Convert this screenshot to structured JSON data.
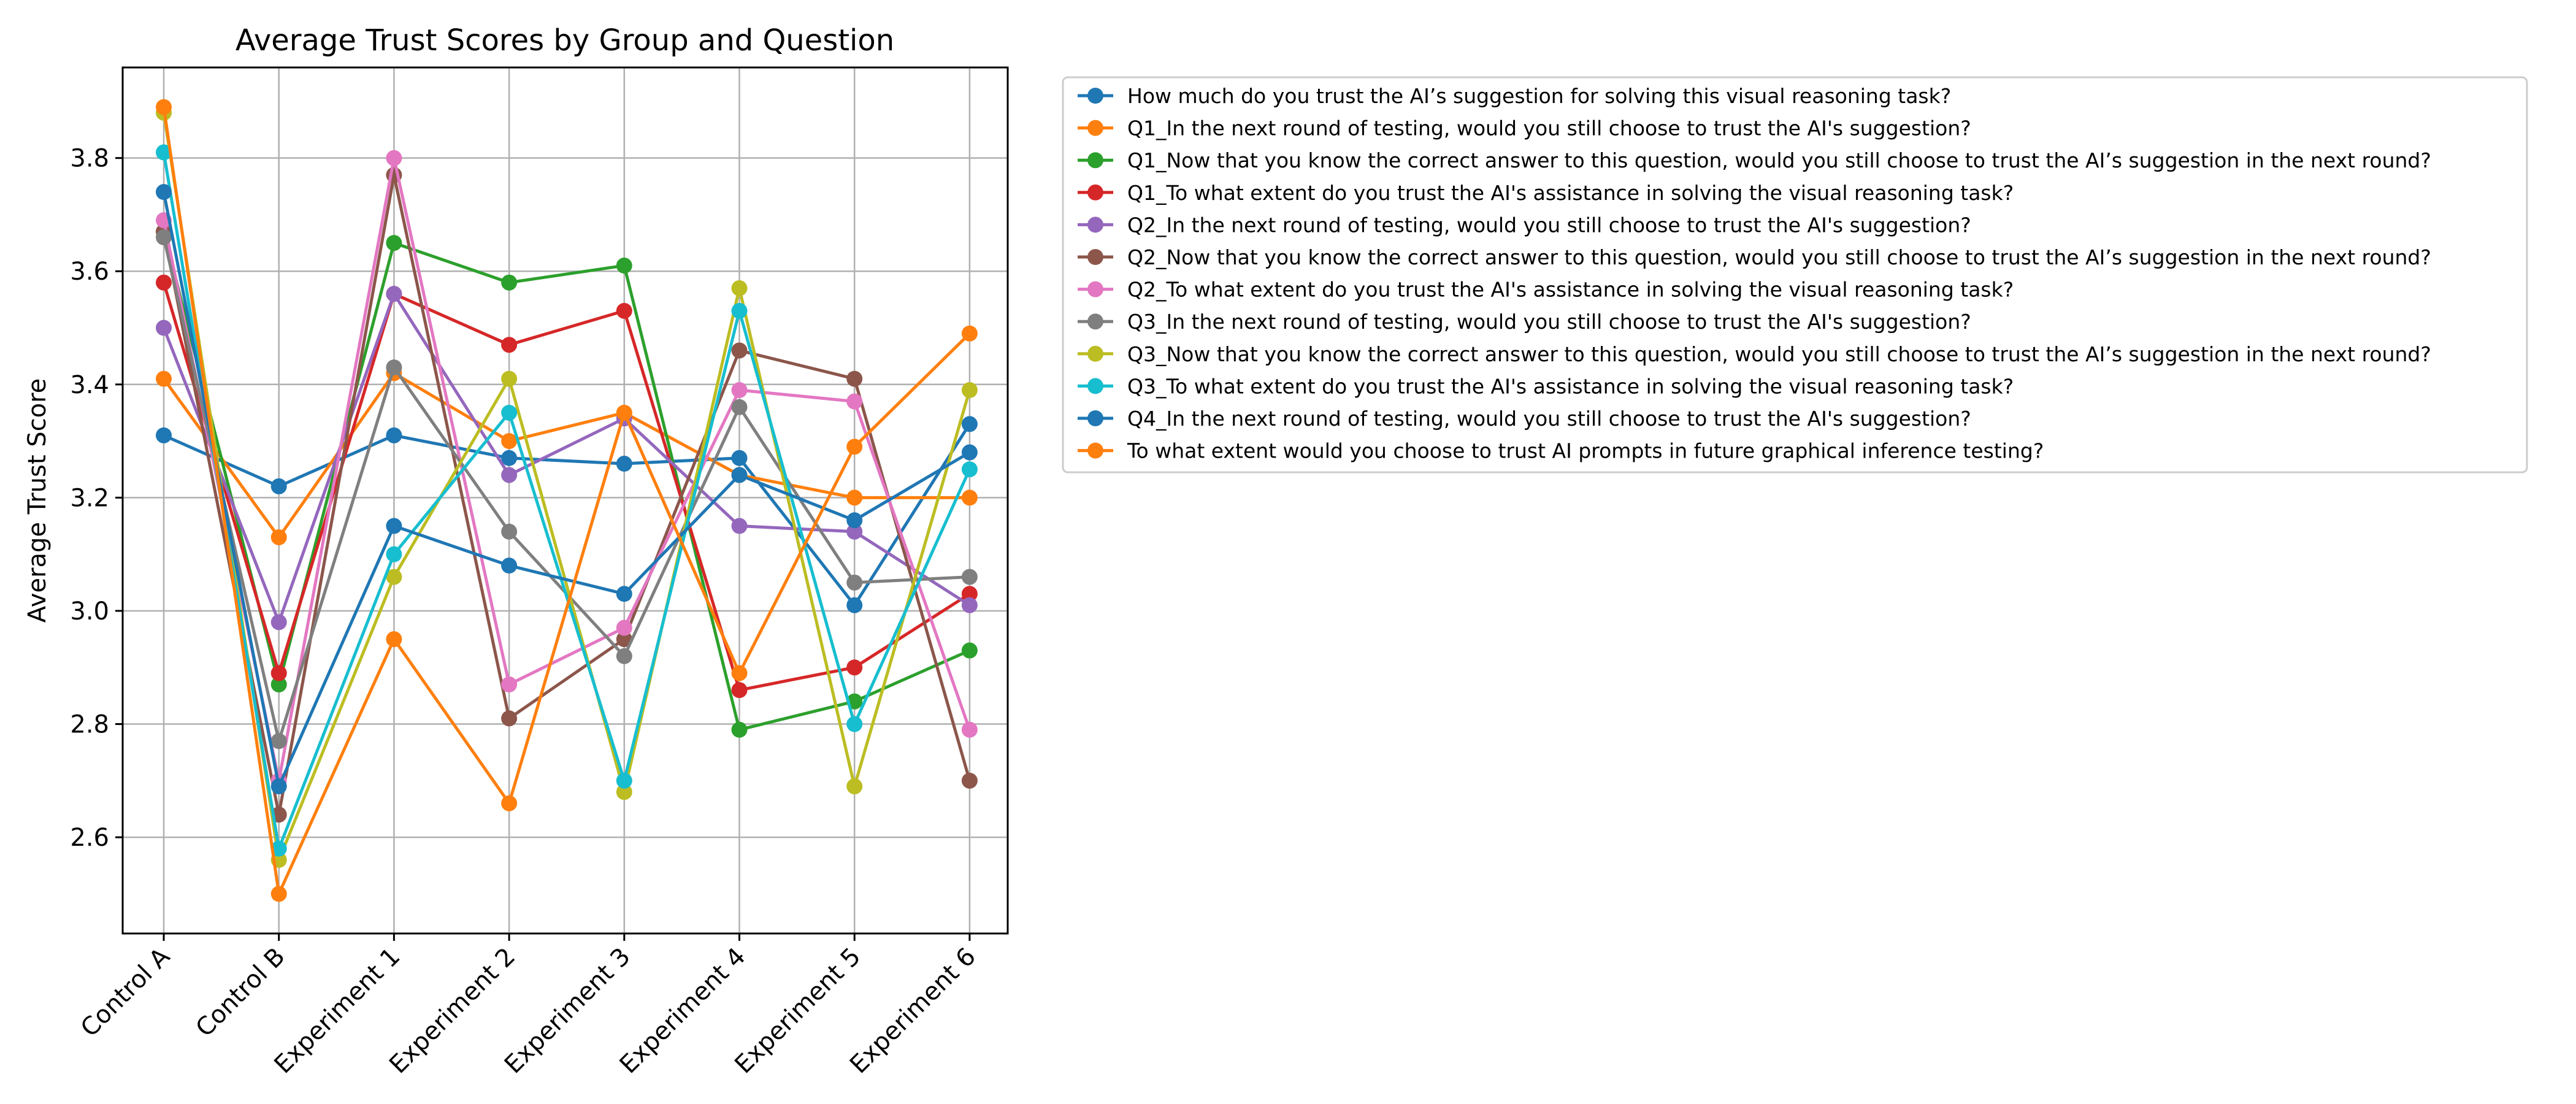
{
  "chart_data": {
    "type": "line",
    "title": "Average Trust Scores by Group and Question",
    "xlabel": "",
    "ylabel": "Average Trust Score",
    "categories": [
      "Control A",
      "Control B",
      "Experiment 1",
      "Experiment 2",
      "Experiment 3",
      "Experiment 4",
      "Experiment 5",
      "Experiment 6"
    ],
    "yticks": [
      "2.6",
      "2.8",
      "3.0",
      "3.2",
      "3.4",
      "3.6",
      "3.8"
    ],
    "ylim": [
      2.43,
      3.96
    ],
    "grid": true,
    "legend_position": "outside-right-top",
    "series": [
      {
        "name": "How much do you trust the AI’s suggestion for solving this visual reasoning task?",
        "color": "#1f77b4",
        "values": [
          3.31,
          3.22,
          3.31,
          3.27,
          3.26,
          3.27,
          3.01,
          3.33
        ]
      },
      {
        "name": "Q1_In the next round of testing, would you still choose to trust the AI's suggestion?",
        "color": "#ff7f0e",
        "values": [
          3.41,
          3.13,
          3.42,
          3.3,
          3.35,
          3.24,
          3.2,
          3.2
        ]
      },
      {
        "name": "Q1_Now that you know the correct answer to this question, would you still choose to trust the AI’s suggestion in the next round?",
        "color": "#2ca02c",
        "values": [
          3.67,
          2.87,
          3.65,
          3.58,
          3.61,
          2.79,
          2.84,
          2.93
        ]
      },
      {
        "name": "Q1_To what extent do you trust the AI's assistance in solving the visual reasoning task?",
        "color": "#d62728",
        "values": [
          3.58,
          2.89,
          3.56,
          3.47,
          3.53,
          2.86,
          2.9,
          3.03
        ]
      },
      {
        "name": "Q2_In the next round of testing, would you still choose to trust the AI's suggestion?",
        "color": "#9467bd",
        "values": [
          3.5,
          2.98,
          3.56,
          3.24,
          3.34,
          3.15,
          3.14,
          3.01
        ]
      },
      {
        "name": "Q2_Now that you know the correct answer to this question, would you still choose to trust the AI’s suggestion in the next round?",
        "color": "#8c564b",
        "values": [
          3.67,
          2.64,
          3.77,
          2.81,
          2.95,
          3.46,
          3.41,
          2.7
        ]
      },
      {
        "name": "Q2_To what extent do you trust the AI's assistance in solving the visual reasoning task?",
        "color": "#e377c2",
        "values": [
          3.69,
          2.7,
          3.8,
          2.87,
          2.97,
          3.39,
          3.37,
          2.79
        ]
      },
      {
        "name": "Q3_In the next round of testing, would you still choose to trust the AI's suggestion?",
        "color": "#7f7f7f",
        "values": [
          3.66,
          2.77,
          3.43,
          3.14,
          2.92,
          3.36,
          3.05,
          3.06
        ]
      },
      {
        "name": "Q3_Now that you know the correct answer to this question, would you still choose to trust the AI’s suggestion in the next round?",
        "color": "#bcbd22",
        "values": [
          3.88,
          2.56,
          3.06,
          3.41,
          2.68,
          3.57,
          2.69,
          3.39
        ]
      },
      {
        "name": "Q3_To what extent do you trust the AI's assistance in solving the visual reasoning task?",
        "color": "#17becf",
        "values": [
          3.81,
          2.58,
          3.1,
          3.35,
          2.7,
          3.53,
          2.8,
          3.25
        ]
      },
      {
        "name": "Q4_In the next round of testing, would you still choose to trust the AI's suggestion?",
        "color": "#1f77b4",
        "values": [
          3.74,
          2.69,
          3.15,
          3.08,
          3.03,
          3.24,
          3.16,
          3.28
        ]
      },
      {
        "name": "To what extent would you choose to trust AI prompts in future graphical inference testing?",
        "color": "#ff7f0e",
        "values": [
          3.89,
          2.5,
          2.95,
          2.66,
          3.35,
          2.89,
          3.29,
          3.49
        ]
      }
    ]
  }
}
